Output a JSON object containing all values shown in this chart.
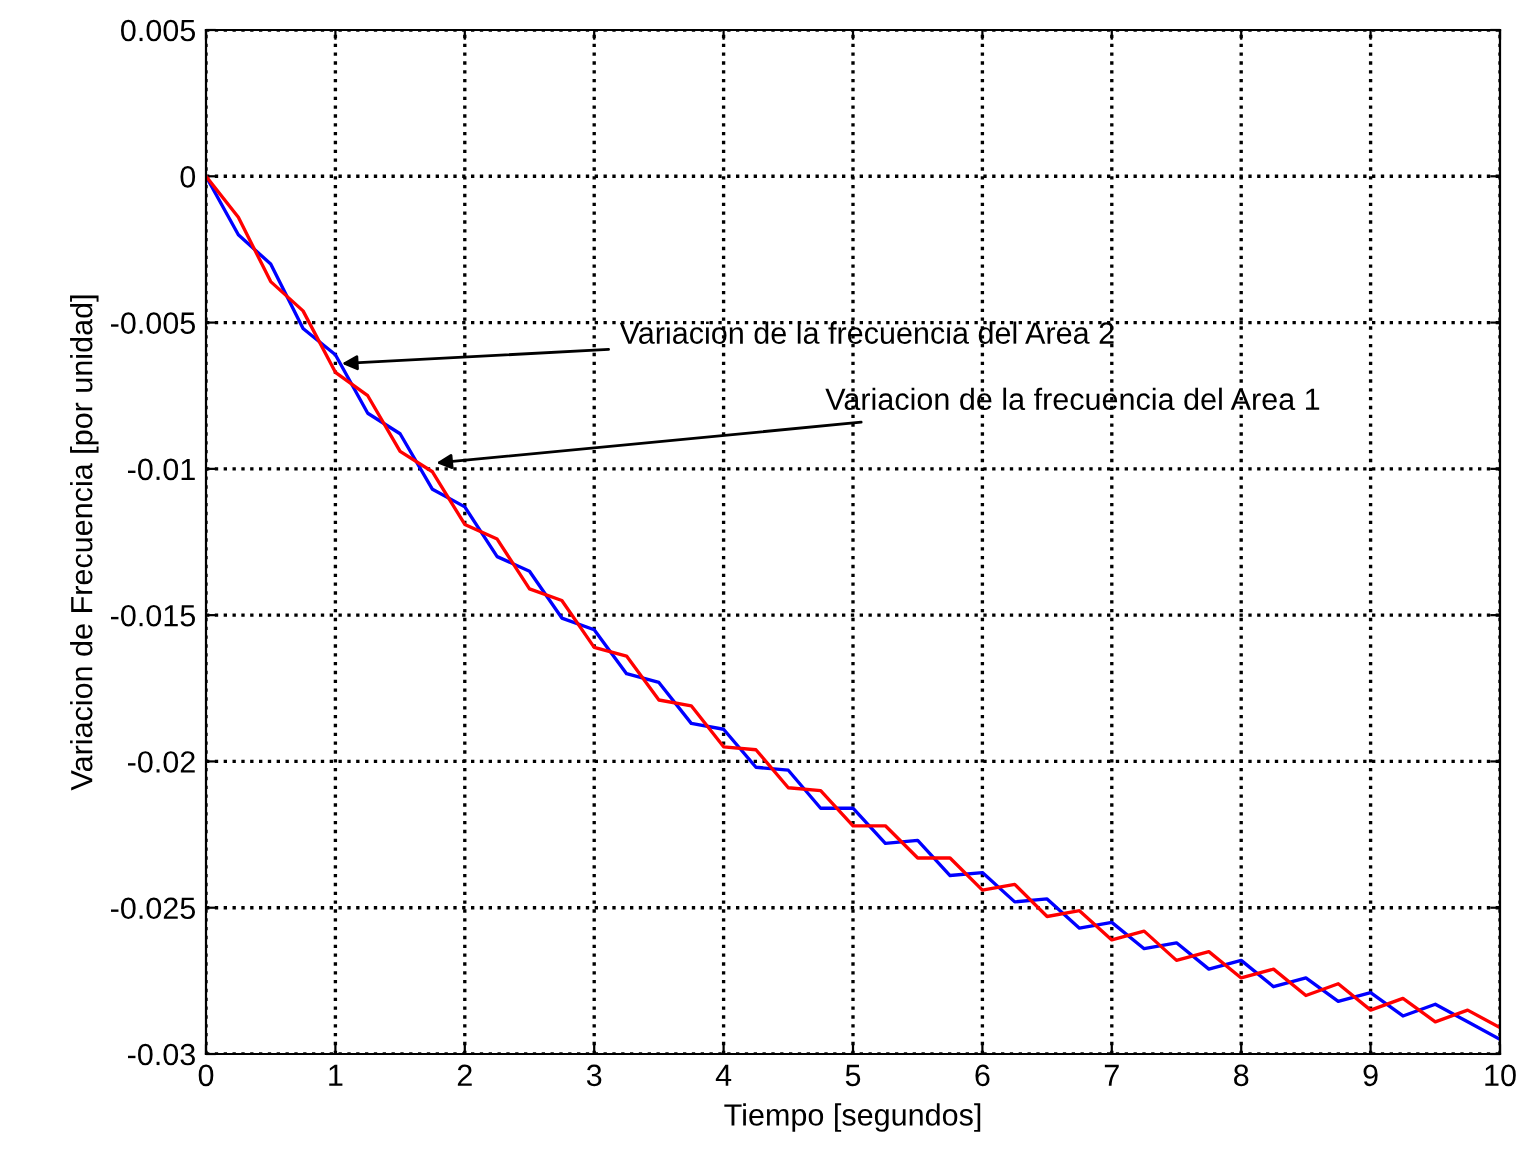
{
  "chart_data": {
    "type": "line",
    "xlabel": "Tiempo [segundos]",
    "ylabel": "Variacion de Frecuencia [por unidad]",
    "x": [
      0,
      0.25,
      0.5,
      0.75,
      1,
      1.25,
      1.5,
      1.75,
      2,
      2.25,
      2.5,
      2.75,
      3,
      3.25,
      3.5,
      3.75,
      4,
      4.25,
      4.5,
      4.75,
      5,
      5.25,
      5.5,
      5.75,
      6,
      6.25,
      6.5,
      6.75,
      7,
      7.25,
      7.5,
      7.75,
      8,
      8.25,
      8.5,
      8.75,
      9,
      9.25,
      9.5,
      9.75,
      10
    ],
    "series": [
      {
        "color": "#0000ff",
        "values": [
          0,
          -0.002,
          -0.003,
          -0.0052,
          -0.0061,
          -0.0081,
          -0.0088,
          -0.0107,
          -0.0113,
          -0.013,
          -0.0135,
          -0.0151,
          -0.0155,
          -0.017,
          -0.0173,
          -0.0187,
          -0.0189,
          -0.0202,
          -0.0203,
          -0.0216,
          -0.0216,
          -0.0228,
          -0.0227,
          -0.0239,
          -0.0238,
          -0.0248,
          -0.0247,
          -0.0257,
          -0.0255,
          -0.0264,
          -0.0262,
          -0.0271,
          -0.0268,
          -0.0277,
          -0.0274,
          -0.0282,
          -0.0279,
          -0.0287,
          -0.0283,
          -0.0289,
          -0.0295
        ]
      },
      {
        "color": "#ff0000",
        "values": [
          0,
          -0.0014,
          -0.0036,
          -0.0046,
          -0.0067,
          -0.0075,
          -0.0094,
          -0.0101,
          -0.0119,
          -0.0124,
          -0.0141,
          -0.0145,
          -0.0161,
          -0.0164,
          -0.0179,
          -0.0181,
          -0.0195,
          -0.0196,
          -0.0209,
          -0.021,
          -0.0222,
          -0.0222,
          -0.0233,
          -0.0233,
          -0.0244,
          -0.0242,
          -0.0253,
          -0.0251,
          -0.0261,
          -0.0258,
          -0.0268,
          -0.0265,
          -0.0274,
          -0.0271,
          -0.028,
          -0.0276,
          -0.0285,
          -0.0281,
          -0.0289,
          -0.0285,
          -0.0291
        ]
      }
    ],
    "xlim": [
      0,
      10
    ],
    "xticks": [
      0,
      1,
      2,
      3,
      4,
      5,
      6,
      7,
      8,
      9,
      10
    ],
    "ylim": [
      -0.03,
      0.005
    ],
    "yticks": [
      -0.03,
      -0.025,
      -0.02,
      -0.015,
      -0.01,
      -0.005,
      0,
      0.005
    ],
    "grid": true,
    "line_style": "solid",
    "marker": "none",
    "legend": false,
    "annotations": [
      {
        "text": "Variacion de la frecuencia del Area 2",
        "x": 1.05,
        "y": -0.0064
      },
      {
        "text": "Variacion de la frecuencia del Area 1",
        "x": 1.78,
        "y": -0.0098
      }
    ]
  }
}
